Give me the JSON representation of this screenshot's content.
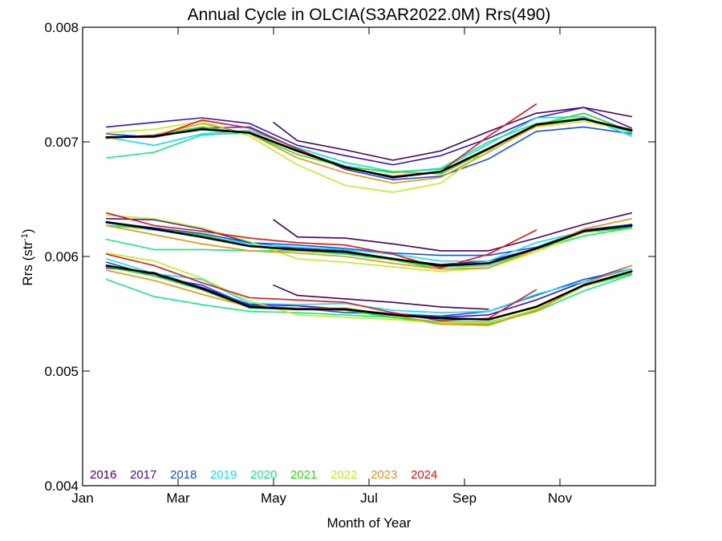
{
  "chart_data": {
    "type": "line",
    "title": "Annual Cycle in OLCIA(S3AR2022.0M) Rrs(490)",
    "xlabel": "Month of Year",
    "ylabel_main": "Rrs (str",
    "ylabel_sup": "-1",
    "ylabel_tail": ")",
    "xlim": [
      0,
      12
    ],
    "ylim": [
      0.004,
      0.008
    ],
    "x_ticks": [
      {
        "value": 0,
        "label": "Jan"
      },
      {
        "value": 2,
        "label": "Mar"
      },
      {
        "value": 4,
        "label": "May"
      },
      {
        "value": 6,
        "label": "Jul"
      },
      {
        "value": 8,
        "label": "Sep"
      },
      {
        "value": 10,
        "label": "Nov"
      }
    ],
    "y_ticks": [
      {
        "value": 0.004,
        "label": "0.004"
      },
      {
        "value": 0.005,
        "label": "0.005"
      },
      {
        "value": 0.006,
        "label": "0.006"
      },
      {
        "value": 0.007,
        "label": "0.007"
      },
      {
        "value": 0.008,
        "label": "0.008"
      }
    ],
    "legend_position": "bottom-left",
    "grid": false,
    "series": [
      {
        "name": "2016",
        "color": "#4b0060",
        "groups": [
          {
            "x": [
              4.0,
              4.5,
              5.5,
              6.5,
              7.5,
              8.5,
              9.5,
              10.5,
              11.5
            ],
            "y": [
              0.00717,
              0.00701,
              0.00693,
              0.00684,
              0.00692,
              0.00709,
              0.00725,
              0.0073,
              0.00722
            ]
          },
          {
            "x": [
              4.0,
              4.5,
              5.5,
              6.5,
              7.5,
              8.5,
              9.5,
              10.5,
              11.5
            ],
            "y": [
              0.00632,
              0.00617,
              0.00616,
              0.00611,
              0.00605,
              0.00605,
              0.00616,
              0.00628,
              0.00638
            ]
          },
          {
            "x": [
              4.0,
              4.5,
              5.5,
              6.5,
              7.5,
              8.5
            ],
            "y": [
              0.00575,
              0.00566,
              0.00563,
              0.0056,
              0.00556,
              0.00554
            ]
          }
        ]
      },
      {
        "name": "2017",
        "color": "#3a10c8",
        "groups": [
          {
            "x": [
              0.5,
              1.5,
              2.5,
              3.5,
              4.5,
              5.5,
              6.5,
              7.5,
              8.5,
              9.5,
              10.5,
              11.5
            ],
            "y": [
              0.00713,
              0.00717,
              0.00721,
              0.00716,
              0.00697,
              0.00688,
              0.0068,
              0.00688,
              0.00703,
              0.00721,
              0.0073,
              0.00712
            ]
          },
          {
            "x": [
              0.5,
              1.5,
              2.5,
              3.5,
              4.5,
              5.5,
              6.5,
              7.5,
              8.5,
              9.5,
              10.5,
              11.5
            ],
            "y": [
              0.00633,
              0.00632,
              0.00624,
              0.00612,
              0.00607,
              0.00605,
              0.00598,
              0.00593,
              0.00596,
              0.00607,
              0.00623,
              0.00628
            ]
          },
          {
            "x": [
              0.5,
              1.5,
              2.5,
              3.5,
              4.5,
              5.5,
              6.5,
              7.5,
              8.5,
              9.5,
              10.5,
              11.5
            ],
            "y": [
              0.0059,
              0.00586,
              0.00573,
              0.00558,
              0.00557,
              0.00554,
              0.0055,
              0.00547,
              0.00549,
              0.00562,
              0.00578,
              0.00592
            ]
          }
        ]
      },
      {
        "name": "2018",
        "color": "#1050f0",
        "groups": [
          {
            "x": [
              0.5,
              1.5,
              2.5,
              3.5,
              4.5,
              5.5,
              6.5,
              7.5,
              8.5,
              9.5,
              10.5,
              11.5
            ],
            "y": [
              0.00707,
              0.00704,
              0.00712,
              0.00713,
              0.00694,
              0.00676,
              0.00667,
              0.0067,
              0.00685,
              0.00709,
              0.00713,
              0.00707
            ]
          },
          {
            "x": [
              0.5,
              1.5,
              2.5,
              3.5,
              4.5,
              5.5,
              6.5,
              7.5,
              8.5,
              9.5,
              10.5,
              11.5
            ],
            "y": [
              0.0063,
              0.00625,
              0.0062,
              0.00612,
              0.0061,
              0.00607,
              0.00603,
              0.00601,
              0.00601,
              0.00608,
              0.00623,
              0.00628
            ]
          },
          {
            "x": [
              0.5,
              1.5,
              2.5,
              3.5,
              4.5,
              5.5,
              6.5,
              7.5,
              8.5,
              9.5,
              10.5,
              11.5
            ],
            "y": [
              0.00595,
              0.00583,
              0.00575,
              0.00557,
              0.00555,
              0.00551,
              0.0055,
              0.00548,
              0.00552,
              0.00566,
              0.0058,
              0.00589
            ]
          }
        ]
      },
      {
        "name": "2019",
        "color": "#10e0ff",
        "groups": [
          {
            "x": [
              0.5,
              1.5,
              2.5,
              3.5,
              4.5,
              5.5,
              6.5,
              7.5,
              8.5,
              9.5,
              10.5,
              11.5
            ],
            "y": [
              0.00704,
              0.00697,
              0.00707,
              0.0071,
              0.00695,
              0.00682,
              0.00674,
              0.00676,
              0.00698,
              0.00721,
              0.00722,
              0.00705
            ]
          },
          {
            "x": [
              0.5,
              1.5,
              2.5,
              3.5,
              4.5,
              5.5,
              6.5,
              7.5,
              8.5,
              9.5,
              10.5,
              11.5
            ],
            "y": [
              0.00629,
              0.00623,
              0.00618,
              0.00611,
              0.00608,
              0.00606,
              0.00602,
              0.00596,
              0.00596,
              0.00612,
              0.00622,
              0.00626
            ]
          },
          {
            "x": [
              0.5,
              1.5,
              2.5,
              3.5,
              4.5,
              5.5,
              6.5,
              7.5,
              8.5,
              9.5,
              10.5,
              11.5
            ],
            "y": [
              0.00598,
              0.00585,
              0.0058,
              0.00559,
              0.00558,
              0.00559,
              0.00553,
              0.00551,
              0.00552,
              0.00567,
              0.00578,
              0.00589
            ]
          }
        ]
      },
      {
        "name": "2020",
        "color": "#10f080",
        "groups": [
          {
            "x": [
              0.5,
              1.5,
              2.5,
              3.5,
              4.5,
              5.5,
              6.5,
              7.5,
              8.5,
              9.5,
              10.5,
              11.5
            ],
            "y": [
              0.00686,
              0.00691,
              0.00706,
              0.00708,
              0.00693,
              0.00679,
              0.00673,
              0.00677,
              0.007,
              0.00716,
              0.00721,
              0.00708
            ]
          },
          {
            "x": [
              0.5,
              1.5,
              2.5,
              3.5,
              4.5,
              5.5,
              6.5,
              7.5,
              8.5,
              9.5,
              10.5,
              11.5
            ],
            "y": [
              0.00615,
              0.00606,
              0.00606,
              0.00605,
              0.00605,
              0.00602,
              0.00597,
              0.00591,
              0.00592,
              0.00606,
              0.00618,
              0.00625
            ]
          },
          {
            "x": [
              0.5,
              1.5,
              2.5,
              3.5,
              4.5,
              5.5,
              6.5,
              7.5,
              8.5,
              9.5,
              10.5,
              11.5
            ],
            "y": [
              0.0058,
              0.00565,
              0.00558,
              0.00552,
              0.00551,
              0.00549,
              0.00547,
              0.00543,
              0.00543,
              0.00552,
              0.0057,
              0.00584
            ]
          }
        ]
      },
      {
        "name": "2021",
        "color": "#28e010",
        "groups": [
          {
            "x": [
              0.5,
              1.5,
              2.5,
              3.5,
              4.5,
              5.5,
              6.5,
              7.5,
              8.5,
              9.5,
              10.5,
              11.5
            ],
            "y": [
              0.00703,
              0.00706,
              0.00713,
              0.00707,
              0.00689,
              0.00678,
              0.00674,
              0.00672,
              0.00693,
              0.00715,
              0.00725,
              0.00709
            ]
          },
          {
            "x": [
              0.5,
              1.5,
              2.5,
              3.5,
              4.5,
              5.5,
              6.5,
              7.5,
              8.5,
              9.5,
              10.5,
              11.5
            ],
            "y": [
              0.00627,
              0.00624,
              0.00619,
              0.00609,
              0.00605,
              0.00603,
              0.00597,
              0.00589,
              0.0059,
              0.00606,
              0.00621,
              0.00625
            ]
          },
          {
            "x": [
              0.5,
              1.5,
              2.5,
              3.5,
              4.5,
              5.5,
              6.5,
              7.5,
              8.5,
              9.5,
              10.5,
              11.5
            ],
            "y": [
              0.00591,
              0.00583,
              0.00571,
              0.00555,
              0.00554,
              0.00553,
              0.00547,
              0.00541,
              0.0054,
              0.00553,
              0.00574,
              0.00585
            ]
          }
        ]
      },
      {
        "name": "2022",
        "color": "#c0f020",
        "groups": [
          {
            "x": [
              0.5,
              1.5,
              2.5,
              3.5,
              4.5,
              5.5,
              6.5,
              7.5,
              8.5,
              9.5,
              10.5,
              11.5
            ],
            "y": [
              0.00708,
              0.00711,
              0.00718,
              0.00705,
              0.0068,
              0.00662,
              0.00656,
              0.00664,
              0.00694,
              0.00713,
              0.00718,
              0.0071
            ]
          },
          {
            "x": [
              0.5,
              1.5,
              2.5,
              3.5,
              4.5,
              5.5,
              6.5,
              7.5,
              8.5,
              9.5,
              10.5,
              11.5
            ],
            "y": [
              0.00636,
              0.00633,
              0.00625,
              0.00613,
              0.00598,
              0.00595,
              0.00591,
              0.00587,
              0.0059,
              0.00604,
              0.00621,
              0.00627
            ]
          },
          {
            "x": [
              0.5,
              1.5,
              2.5,
              3.5,
              4.5,
              5.5,
              6.5,
              7.5,
              8.5,
              9.5,
              10.5,
              11.5
            ],
            "y": [
              0.00603,
              0.00596,
              0.00581,
              0.00561,
              0.00549,
              0.00547,
              0.00545,
              0.00542,
              0.00542,
              0.00554,
              0.00574,
              0.00587
            ]
          }
        ]
      },
      {
        "name": "2023",
        "color": "#f09010",
        "groups": [
          {
            "x": [
              0.5,
              1.5,
              2.5,
              3.5,
              4.5,
              5.5,
              6.5,
              7.5,
              8.5,
              9.5,
              10.5,
              11.5
            ],
            "y": [
              0.00703,
              0.00706,
              0.00716,
              0.00707,
              0.00686,
              0.00673,
              0.00664,
              0.00669,
              0.00691,
              0.00714,
              0.0072,
              0.00711
            ]
          },
          {
            "x": [
              0.5,
              1.5,
              2.5,
              3.5,
              4.5,
              5.5,
              6.5,
              7.5,
              8.5,
              9.5,
              10.5,
              11.5
            ],
            "y": [
              0.00627,
              0.00619,
              0.00611,
              0.00605,
              0.00603,
              0.006,
              0.00594,
              0.00589,
              0.0059,
              0.00606,
              0.00624,
              0.00633
            ]
          },
          {
            "x": [
              0.5,
              1.5,
              2.5,
              3.5,
              4.5,
              5.5,
              6.5,
              7.5,
              8.5,
              9.5,
              10.5,
              11.5
            ],
            "y": [
              0.00588,
              0.00579,
              0.00567,
              0.00556,
              0.00555,
              0.00555,
              0.00549,
              0.00541,
              0.00541,
              0.00552,
              0.00576,
              0.00592
            ]
          }
        ]
      },
      {
        "name": "2024",
        "color": "#f01010",
        "groups": [
          {
            "x": [
              0.5,
              1.5,
              2.5,
              3.5,
              4.5,
              5.5,
              6.5,
              7.5,
              8.5,
              9.5
            ],
            "y": [
              0.00704,
              0.00704,
              0.00719,
              0.00712,
              0.00694,
              0.00677,
              0.0067,
              0.00674,
              0.00705,
              0.00733
            ]
          },
          {
            "x": [
              0.5,
              1.5,
              2.5,
              3.5,
              4.5,
              5.5,
              6.5,
              7.5,
              8.5,
              9.5
            ],
            "y": [
              0.00638,
              0.00627,
              0.00622,
              0.00616,
              0.00612,
              0.0061,
              0.00602,
              0.0059,
              0.00602,
              0.00623
            ]
          },
          {
            "x": [
              0.5,
              1.5,
              2.5,
              3.5,
              4.5,
              5.5,
              6.5,
              7.5,
              8.5,
              9.5
            ],
            "y": [
              0.00602,
              0.00592,
              0.00577,
              0.00564,
              0.00562,
              0.0056,
              0.00551,
              0.00544,
              0.00546,
              0.00571
            ]
          }
        ]
      },
      {
        "name": "",
        "color": "#000000",
        "legend": false,
        "width": 2.6,
        "groups": [
          {
            "x": [
              0.5,
              1.5,
              2.5,
              3.5,
              4.5,
              5.5,
              6.5,
              7.5,
              8.5,
              9.5,
              10.5,
              11.5
            ],
            "y": [
              0.00704,
              0.00705,
              0.00711,
              0.00708,
              0.00692,
              0.00678,
              0.00669,
              0.00674,
              0.00694,
              0.00715,
              0.0072,
              0.0071
            ]
          },
          {
            "x": [
              0.5,
              1.5,
              2.5,
              3.5,
              4.5,
              5.5,
              6.5,
              7.5,
              8.5,
              9.5,
              10.5,
              11.5
            ],
            "y": [
              0.0063,
              0.00624,
              0.00617,
              0.00609,
              0.00606,
              0.00604,
              0.00598,
              0.00592,
              0.00594,
              0.00607,
              0.00622,
              0.00627
            ]
          },
          {
            "x": [
              0.5,
              1.5,
              2.5,
              3.5,
              4.5,
              5.5,
              6.5,
              7.5,
              8.5,
              9.5,
              10.5,
              11.5
            ],
            "y": [
              0.00592,
              0.00585,
              0.00572,
              0.00556,
              0.00554,
              0.00554,
              0.00549,
              0.00546,
              0.00545,
              0.00556,
              0.00575,
              0.00587
            ]
          }
        ]
      }
    ]
  }
}
